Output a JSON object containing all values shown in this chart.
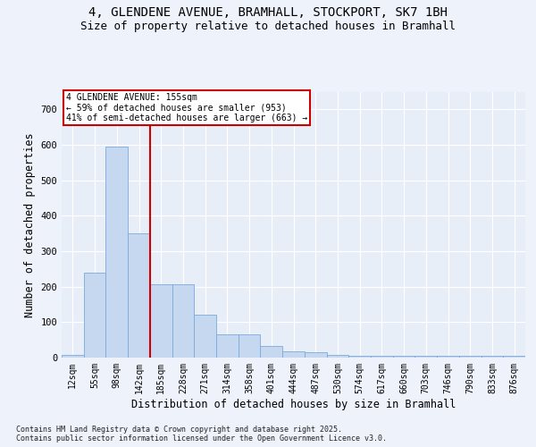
{
  "title_line1": "4, GLENDENE AVENUE, BRAMHALL, STOCKPORT, SK7 1BH",
  "title_line2": "Size of property relative to detached houses in Bramhall",
  "xlabel": "Distribution of detached houses by size in Bramhall",
  "ylabel": "Number of detached properties",
  "categories": [
    "12sqm",
    "55sqm",
    "98sqm",
    "142sqm",
    "185sqm",
    "228sqm",
    "271sqm",
    "314sqm",
    "358sqm",
    "401sqm",
    "444sqm",
    "487sqm",
    "530sqm",
    "574sqm",
    "617sqm",
    "660sqm",
    "703sqm",
    "746sqm",
    "790sqm",
    "833sqm",
    "876sqm"
  ],
  "values": [
    8,
    240,
    595,
    350,
    207,
    207,
    120,
    65,
    65,
    32,
    18,
    15,
    8,
    5,
    5,
    5,
    5,
    5,
    5,
    5,
    5
  ],
  "bar_color": "#c5d8f0",
  "bar_edge_color": "#7aabdb",
  "vline_color": "#cc0000",
  "vline_pos": 3.5,
  "annotation_text": "4 GLENDENE AVENUE: 155sqm\n← 59% of detached houses are smaller (953)\n41% of semi-detached houses are larger (663) →",
  "annotation_box_color": "#cc0000",
  "ylim": [
    0,
    750
  ],
  "yticks": [
    0,
    100,
    200,
    300,
    400,
    500,
    600,
    700
  ],
  "plot_bg_color": "#e8eef8",
  "fig_bg_color": "#eef2fa",
  "grid_color": "#ffffff",
  "title_fontsize": 10,
  "subtitle_fontsize": 9,
  "tick_fontsize": 7,
  "label_fontsize": 8.5,
  "footer_text": "Contains HM Land Registry data © Crown copyright and database right 2025.\nContains public sector information licensed under the Open Government Licence v3.0."
}
